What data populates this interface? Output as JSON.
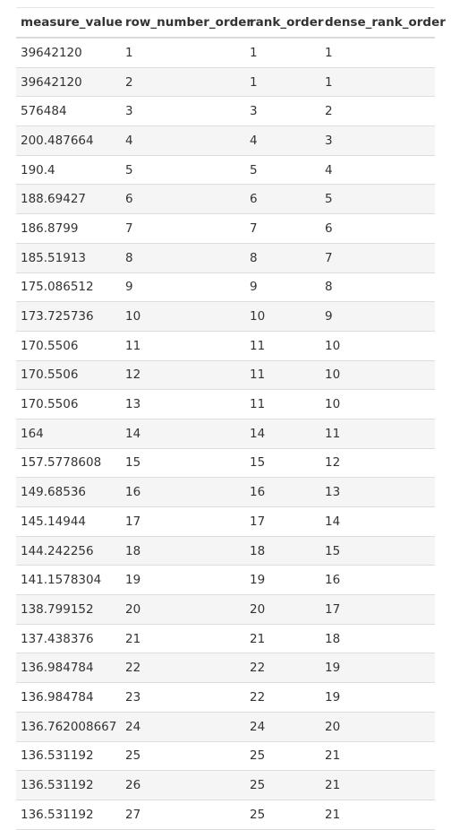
{
  "table": {
    "columns": [
      "measure_value",
      "row_number_order",
      "rank_order",
      "dense_rank_order"
    ],
    "rows": [
      [
        "39642120",
        "1",
        "1",
        "1"
      ],
      [
        "39642120",
        "2",
        "1",
        "1"
      ],
      [
        "576484",
        "3",
        "3",
        "2"
      ],
      [
        "200.487664",
        "4",
        "4",
        "3"
      ],
      [
        "190.4",
        "5",
        "5",
        "4"
      ],
      [
        "188.69427",
        "6",
        "6",
        "5"
      ],
      [
        "186.8799",
        "7",
        "7",
        "6"
      ],
      [
        "185.51913",
        "8",
        "8",
        "7"
      ],
      [
        "175.086512",
        "9",
        "9",
        "8"
      ],
      [
        "173.725736",
        "10",
        "10",
        "9"
      ],
      [
        "170.5506",
        "11",
        "11",
        "10"
      ],
      [
        "170.5506",
        "12",
        "11",
        "10"
      ],
      [
        "170.5506",
        "13",
        "11",
        "10"
      ],
      [
        "164",
        "14",
        "14",
        "11"
      ],
      [
        "157.5778608",
        "15",
        "15",
        "12"
      ],
      [
        "149.68536",
        "16",
        "16",
        "13"
      ],
      [
        "145.14944",
        "17",
        "17",
        "14"
      ],
      [
        "144.242256",
        "18",
        "18",
        "15"
      ],
      [
        "141.1578304",
        "19",
        "19",
        "16"
      ],
      [
        "138.799152",
        "20",
        "20",
        "17"
      ],
      [
        "137.438376",
        "21",
        "21",
        "18"
      ],
      [
        "136.984784",
        "22",
        "22",
        "19"
      ],
      [
        "136.984784",
        "23",
        "22",
        "19"
      ],
      [
        "136.762008667",
        "24",
        "24",
        "20"
      ],
      [
        "136.531192",
        "25",
        "25",
        "21"
      ],
      [
        "136.531192",
        "26",
        "25",
        "21"
      ],
      [
        "136.531192",
        "27",
        "25",
        "21"
      ]
    ]
  }
}
